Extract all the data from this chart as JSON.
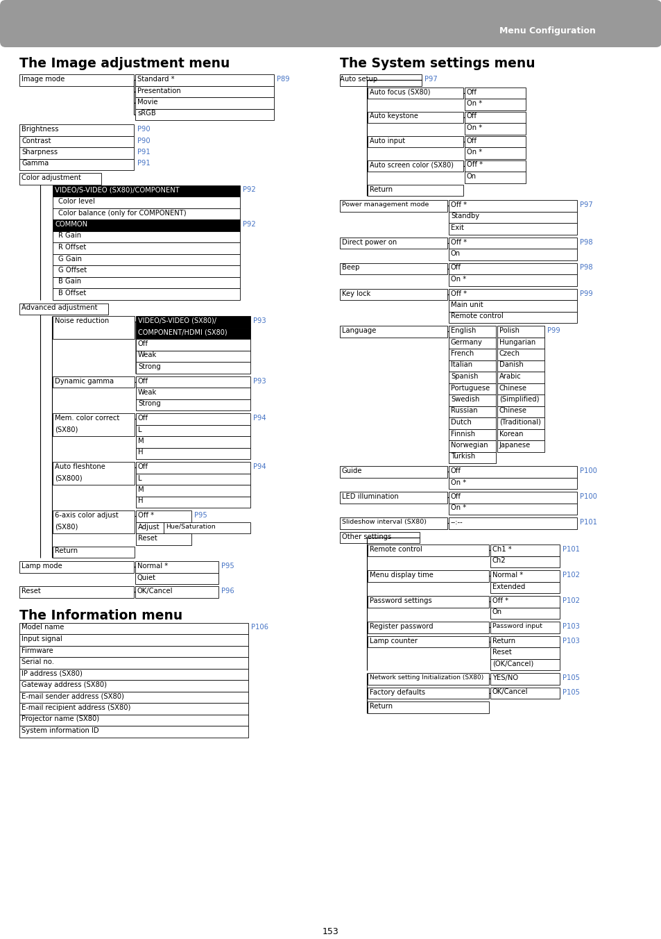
{
  "page_num": "153",
  "header_text": "Menu Configuration",
  "header_bg": "#999999",
  "bg_color": "#ffffff",
  "blue_color": "#4472C4",
  "black_color": "#000000",
  "title_left": "The Image adjustment menu",
  "title_right": "The System settings menu",
  "title3": "The Information menu"
}
